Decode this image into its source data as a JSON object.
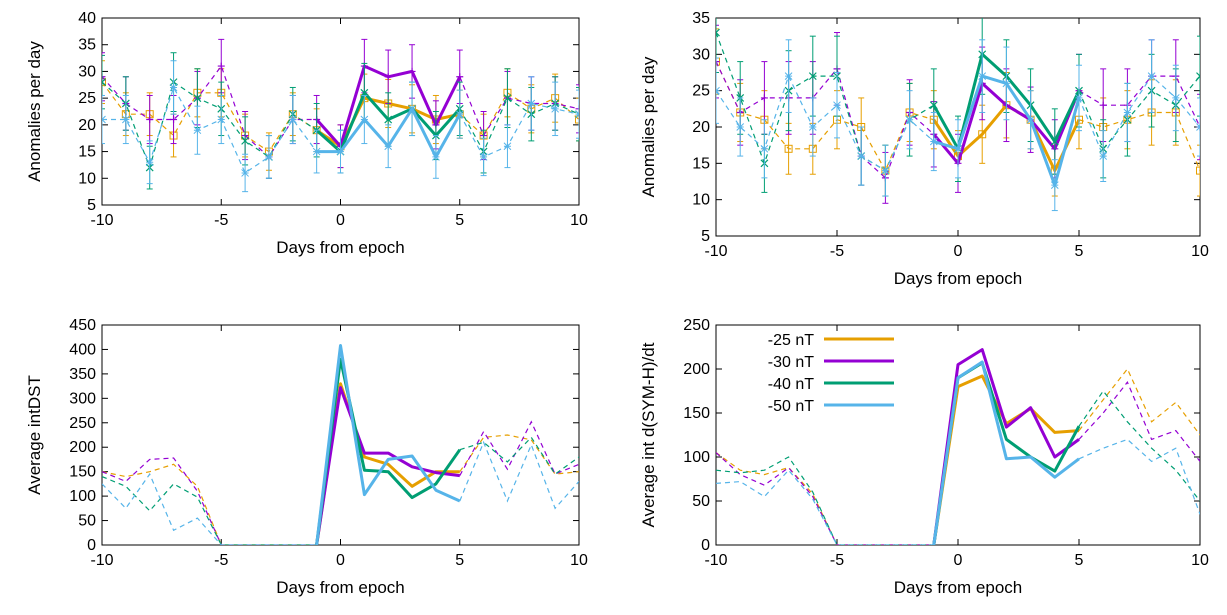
{
  "colors": {
    "-25 nT": "#e69f00",
    "-30 nT": "#9400d3",
    "-40 nT": "#009e73",
    "-50 nT": "#56b4e9"
  },
  "chart_data": [
    {
      "type": "line",
      "xlabel": "Days from epoch",
      "ylabel": "Anomalies per day",
      "xlim": [
        -10,
        10
      ],
      "ylim": [
        5,
        40
      ],
      "xticks": [
        "-10",
        "-5",
        "0",
        "5",
        "10"
      ],
      "yticks": [
        "5",
        "10",
        "15",
        "20",
        "25",
        "30",
        "35",
        "40"
      ],
      "grid": false,
      "error_bars": true,
      "solid_range": [
        -1,
        5
      ],
      "x": [
        -10,
        -9,
        -8,
        -7,
        -6,
        -5,
        -4,
        -3,
        -2,
        -1,
        0,
        1,
        2,
        3,
        4,
        5,
        6,
        7,
        8,
        9,
        10
      ],
      "series": [
        {
          "name": "-25 nT",
          "marker": "square",
          "values": [
            28,
            22,
            22,
            18,
            26,
            26,
            18,
            15,
            22,
            19,
            16,
            25,
            24,
            23,
            21,
            22,
            18,
            26,
            23,
            25,
            21
          ],
          "err": [
            4,
            4,
            4,
            4,
            4.5,
            4.5,
            4,
            3.5,
            4,
            4,
            4,
            4.5,
            4.5,
            4.5,
            4.5,
            4.5,
            4,
            4.5,
            4.5,
            4.5,
            4
          ]
        },
        {
          "name": "-30 nT",
          "marker": "plus",
          "values": [
            29,
            24,
            21,
            21,
            25,
            31,
            18,
            14,
            21,
            21,
            16,
            31,
            29,
            30,
            20,
            29,
            18,
            25,
            24,
            24,
            23
          ],
          "err": [
            4.5,
            5,
            4.5,
            4.5,
            5,
            5,
            4.5,
            4,
            4.5,
            4.5,
            4,
            5,
            5,
            5,
            4.5,
            5,
            4.5,
            5,
            5,
            5,
            4.5
          ]
        },
        {
          "name": "-40 nT",
          "marker": "x",
          "values": [
            28,
            24,
            12,
            28,
            25,
            23,
            17,
            14,
            22,
            19,
            15,
            26,
            21,
            23,
            18,
            23,
            15,
            25,
            22,
            24,
            22
          ],
          "err": [
            5,
            5,
            4,
            5.5,
            5.5,
            5,
            4.5,
            4,
            5,
            5,
            4,
            5.5,
            5,
            5,
            4.5,
            5,
            4,
            5.5,
            5,
            5,
            5
          ]
        },
        {
          "name": "-50 nT",
          "marker": "star",
          "values": [
            21,
            21,
            13,
            27,
            19,
            21,
            11,
            14,
            21,
            15,
            15,
            21,
            16,
            23,
            14,
            22,
            14,
            16,
            24,
            23,
            22
          ],
          "err": [
            4.5,
            4.5,
            4,
            5,
            4.5,
            4.5,
            3.5,
            4,
            4.5,
            4,
            4,
            4.5,
            4,
            5,
            4,
            4.5,
            3.5,
            4,
            5,
            5,
            4.5
          ]
        }
      ]
    },
    {
      "type": "line",
      "xlabel": "Days from epoch",
      "ylabel": "Anomalies per day",
      "xlim": [
        -10,
        10
      ],
      "ylim": [
        5,
        35
      ],
      "xticks": [
        "-10",
        "-5",
        "0",
        "5",
        "10"
      ],
      "yticks": [
        "5",
        "10",
        "15",
        "20",
        "25",
        "30",
        "35"
      ],
      "grid": false,
      "error_bars": true,
      "solid_range": [
        -1,
        5
      ],
      "x": [
        -10,
        -9,
        -8,
        -7,
        -6,
        -5,
        -4,
        -3,
        -2,
        -1,
        0,
        1,
        2,
        3,
        4,
        5,
        6,
        7,
        8,
        9,
        10
      ],
      "series": [
        {
          "name": "-25 nT",
          "marker": "square",
          "values": [
            29,
            22,
            21,
            17,
            17,
            21,
            20,
            14,
            22,
            21,
            16,
            19,
            23,
            21,
            14,
            21,
            20,
            21,
            22,
            22,
            14
          ],
          "err": [
            4.5,
            4,
            4,
            3.5,
            3.5,
            4,
            4,
            3.5,
            4,
            4,
            3.5,
            4,
            4.5,
            4,
            3.5,
            4,
            4,
            4,
            4.5,
            4.5,
            3.5
          ]
        },
        {
          "name": "-30 nT",
          "marker": "plus",
          "values": [
            29,
            22,
            24,
            24,
            24,
            28,
            16,
            13,
            22,
            19,
            15,
            26,
            23,
            21,
            17,
            25,
            23,
            23,
            27,
            27,
            20
          ],
          "err": [
            5,
            4.5,
            5,
            5,
            5,
            5,
            4,
            3.5,
            4.5,
            4.5,
            4,
            5,
            5,
            4.5,
            4,
            5,
            5,
            5,
            5,
            5,
            4.5
          ]
        },
        {
          "name": "-40 nT",
          "marker": "x",
          "values": [
            33,
            24,
            15,
            25,
            27,
            27,
            16,
            14,
            21,
            23,
            17,
            30,
            27,
            23,
            18,
            25,
            17,
            21,
            25,
            23,
            27
          ],
          "err": [
            5.5,
            5,
            4,
            5.5,
            5.5,
            5.5,
            4,
            3.5,
            5,
            5,
            4.5,
            5.5,
            5,
            5,
            4.5,
            5,
            4,
            5,
            5,
            5,
            5.5
          ]
        },
        {
          "name": "-50 nT",
          "marker": "star",
          "values": [
            25,
            20,
            17,
            27,
            20,
            23,
            16,
            14,
            21,
            18,
            17,
            27,
            26,
            21,
            12,
            24,
            16,
            22,
            27,
            24,
            20
          ],
          "err": [
            4.5,
            4,
            4,
            5,
            4,
            4.5,
            4,
            3.5,
            4,
            4,
            4,
            5,
            5,
            4,
            3.5,
            4.5,
            3.5,
            4,
            5,
            4.5,
            4
          ]
        }
      ]
    },
    {
      "type": "line",
      "xlabel": "Days from epoch",
      "ylabel": "Average intDST",
      "xlim": [
        -10,
        10
      ],
      "ylim": [
        0,
        450
      ],
      "xticks": [
        "-10",
        "-5",
        "0",
        "5",
        "10"
      ],
      "yticks": [
        "0",
        "50",
        "100",
        "150",
        "200",
        "250",
        "300",
        "350",
        "400",
        "450"
      ],
      "grid": false,
      "error_bars": false,
      "solid_range": [
        -1,
        5
      ],
      "x": [
        -10,
        -9,
        -8,
        -7,
        -6,
        -5,
        -4,
        -3,
        -2,
        -1,
        0,
        1,
        2,
        3,
        4,
        5,
        6,
        7,
        8,
        9,
        10
      ],
      "series": [
        {
          "name": "-25 nT",
          "values": [
            150,
            140,
            150,
            165,
            120,
            0,
            0,
            0,
            0,
            0,
            330,
            180,
            165,
            120,
            150,
            150,
            220,
            225,
            215,
            145,
            150
          ]
        },
        {
          "name": "-30 nT",
          "values": [
            150,
            130,
            175,
            178,
            110,
            0,
            0,
            0,
            0,
            0,
            322,
            188,
            188,
            160,
            148,
            142,
            232,
            155,
            252,
            145,
            165
          ]
        },
        {
          "name": "-40 nT",
          "values": [
            140,
            120,
            70,
            125,
            98,
            0,
            0,
            0,
            0,
            0,
            380,
            153,
            150,
            97,
            125,
            195,
            210,
            170,
            220,
            145,
            180
          ]
        },
        {
          "name": "-50 nT",
          "values": [
            125,
            75,
            145,
            30,
            55,
            0,
            0,
            0,
            0,
            0,
            408,
            103,
            175,
            182,
            112,
            90,
            210,
            90,
            205,
            75,
            130
          ]
        }
      ]
    },
    {
      "type": "line",
      "xlabel": "Days from epoch",
      "ylabel": "Average int d(SYM-H)/dt",
      "xlim": [
        -10,
        10
      ],
      "ylim": [
        0,
        250
      ],
      "xticks": [
        "-10",
        "-5",
        "0",
        "5",
        "10"
      ],
      "yticks": [
        "0",
        "50",
        "100",
        "150",
        "200",
        "250"
      ],
      "grid": false,
      "error_bars": false,
      "legend": "top-left",
      "solid_range": [
        -1,
        5
      ],
      "x": [
        -10,
        -9,
        -8,
        -7,
        -6,
        -5,
        -4,
        -3,
        -2,
        -1,
        0,
        1,
        2,
        3,
        4,
        5,
        6,
        7,
        8,
        9,
        10
      ],
      "series": [
        {
          "name": "-25 nT",
          "values": [
            105,
            85,
            80,
            88,
            58,
            0,
            0,
            0,
            0,
            0,
            180,
            192,
            138,
            155,
            128,
            130,
            165,
            200,
            140,
            162,
            125
          ]
        },
        {
          "name": "-30 nT",
          "values": [
            105,
            80,
            68,
            88,
            55,
            0,
            0,
            0,
            0,
            0,
            205,
            222,
            134,
            156,
            100,
            120,
            150,
            185,
            120,
            130,
            95
          ]
        },
        {
          "name": "-40 nT",
          "values": [
            85,
            82,
            85,
            100,
            60,
            0,
            0,
            0,
            0,
            0,
            190,
            207,
            120,
            100,
            84,
            135,
            175,
            140,
            110,
            85,
            50
          ]
        },
        {
          "name": "-50 nT",
          "values": [
            70,
            72,
            55,
            85,
            52,
            0,
            0,
            0,
            0,
            0,
            190,
            208,
            98,
            100,
            77,
            98,
            110,
            120,
            95,
            110,
            35
          ]
        }
      ]
    }
  ]
}
